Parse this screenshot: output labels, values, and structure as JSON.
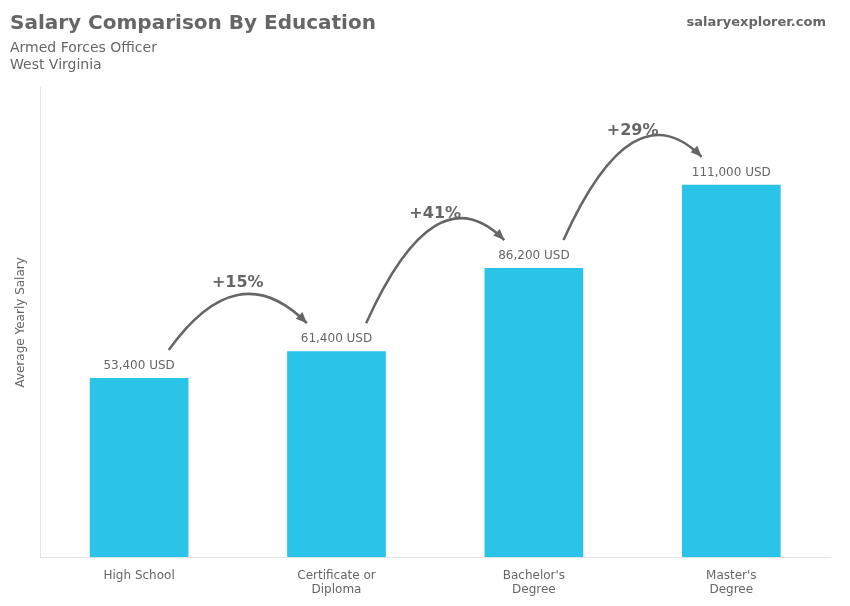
{
  "chart_data": {
    "type": "bar",
    "title": "Salary Comparison By Education",
    "subtitle": "Armed Forces Officer",
    "location": "West Virginia",
    "watermark": "salaryexplorer.com",
    "y_label": "Average Yearly Salary",
    "categories": [
      "High School",
      "Certificate or\nDiploma",
      "Bachelor's\nDegree",
      "Master's\nDegree"
    ],
    "values": [
      53400,
      61400,
      86200,
      111000
    ],
    "value_labels": [
      "53,400 USD",
      "61,400 USD",
      "86,200 USD",
      "111,000 USD"
    ],
    "data_labels": true,
    "annotations": [
      "+15%",
      "+41%",
      "+29%"
    ],
    "color": "#29c4e8",
    "ylim": [
      0,
      140000
    ],
    "grid": false,
    "tick_labels": "x"
  }
}
